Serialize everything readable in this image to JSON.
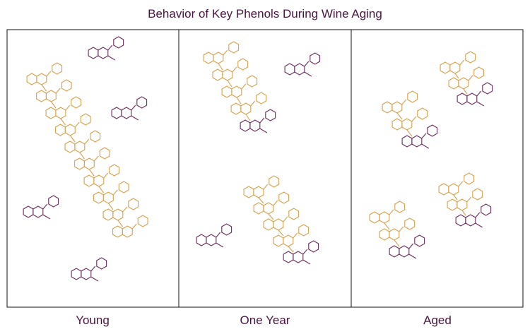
{
  "header": {
    "title": "Behavior of Key Phenols During Wine Aging"
  },
  "panels": [
    {
      "label": "Young"
    },
    {
      "label": "One Year"
    },
    {
      "label": "Aged"
    }
  ]
}
